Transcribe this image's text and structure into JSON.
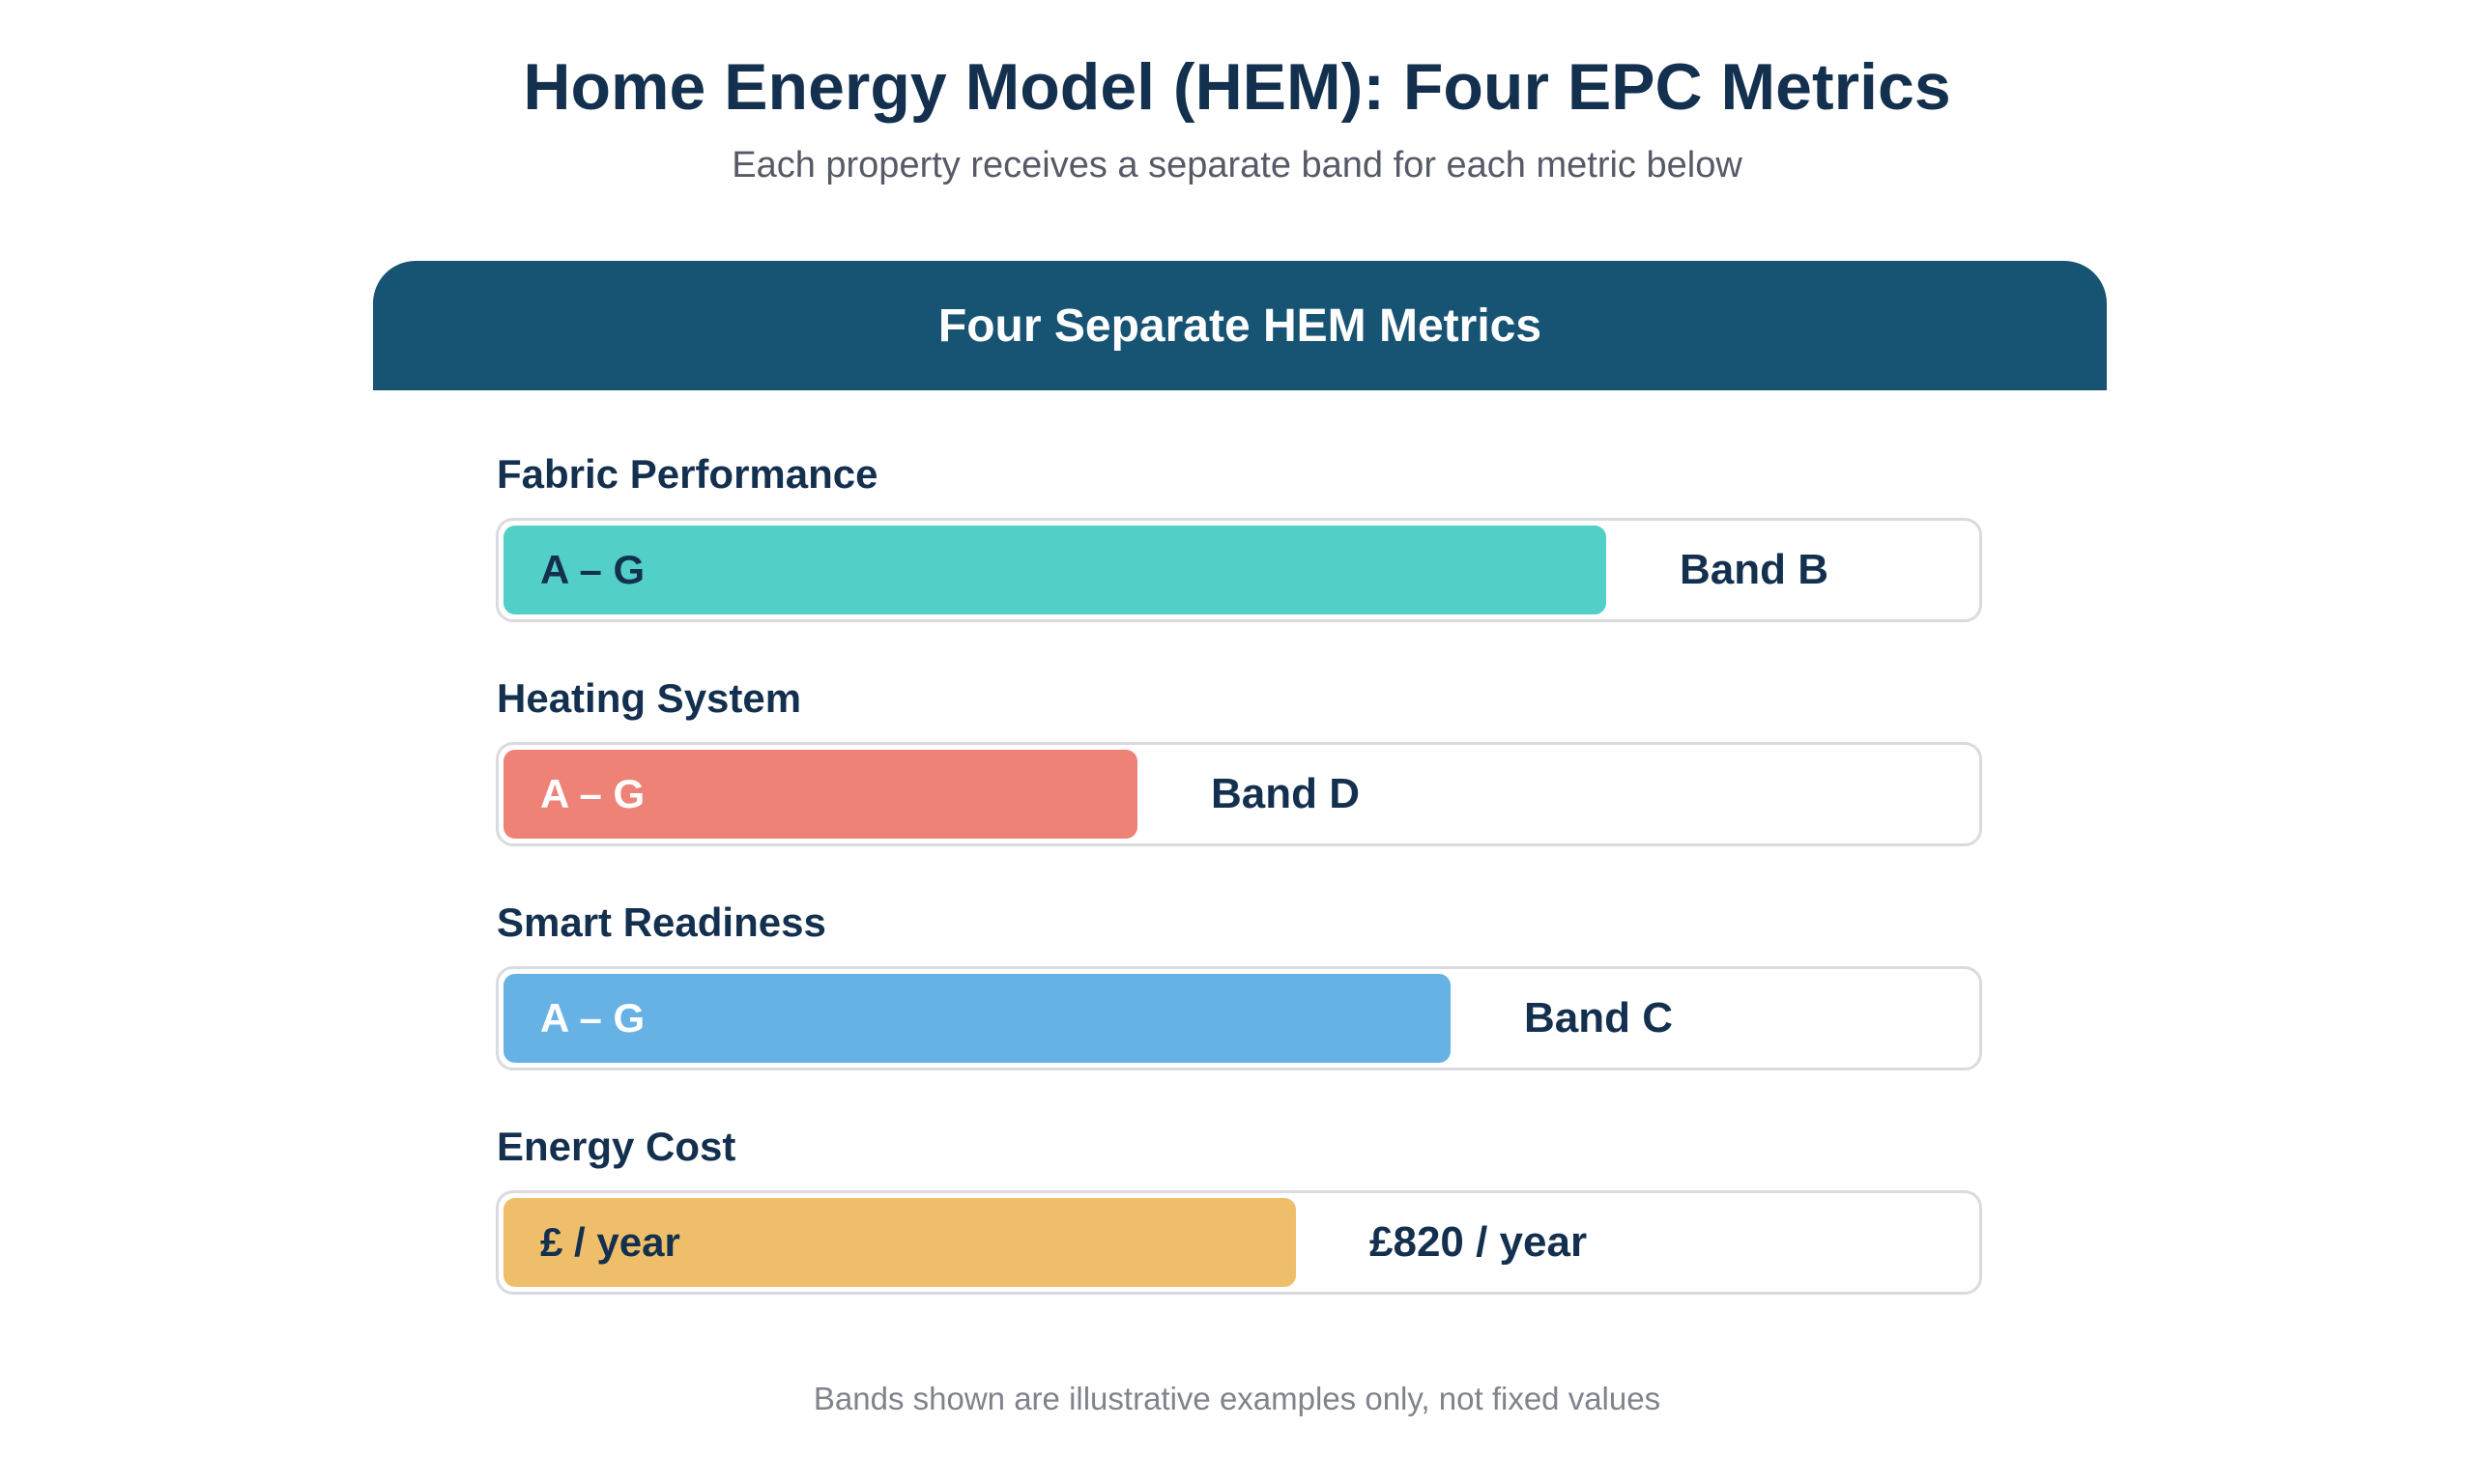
{
  "header": {
    "title": "Home Energy Model (HEM): Four EPC Metrics",
    "subtitle": "Each property receives a separate band for each metric below"
  },
  "panel": {
    "title": "Four Separate HEM Metrics",
    "metrics": [
      {
        "label": "Fabric Performance",
        "scale_text": "A – G",
        "band_text": "Band B",
        "fill_fraction": 0.745,
        "color": "#52cfc6",
        "scale_text_color": "#14304f"
      },
      {
        "label": "Heating System",
        "scale_text": "A – G",
        "band_text": "Band D",
        "fill_fraction": 0.428,
        "color": "#ee8276",
        "scale_text_color": "#ffffff"
      },
      {
        "label": "Smart Readiness",
        "scale_text": "A – G",
        "band_text": "Band C",
        "fill_fraction": 0.64,
        "color": "#67b2e4",
        "scale_text_color": "#ffffff"
      },
      {
        "label": "Energy Cost",
        "scale_text": "£ / year",
        "band_text": "£820 / year",
        "fill_fraction": 0.535,
        "color": "#eebe6a",
        "scale_text_color": "#14304f"
      }
    ]
  },
  "footer": {
    "note": "Bands shown are illustrative examples only, not fixed values"
  },
  "colors": {
    "header_bg": "#175474",
    "title_text": "#14304f",
    "track_border": "#d9dbe0"
  }
}
